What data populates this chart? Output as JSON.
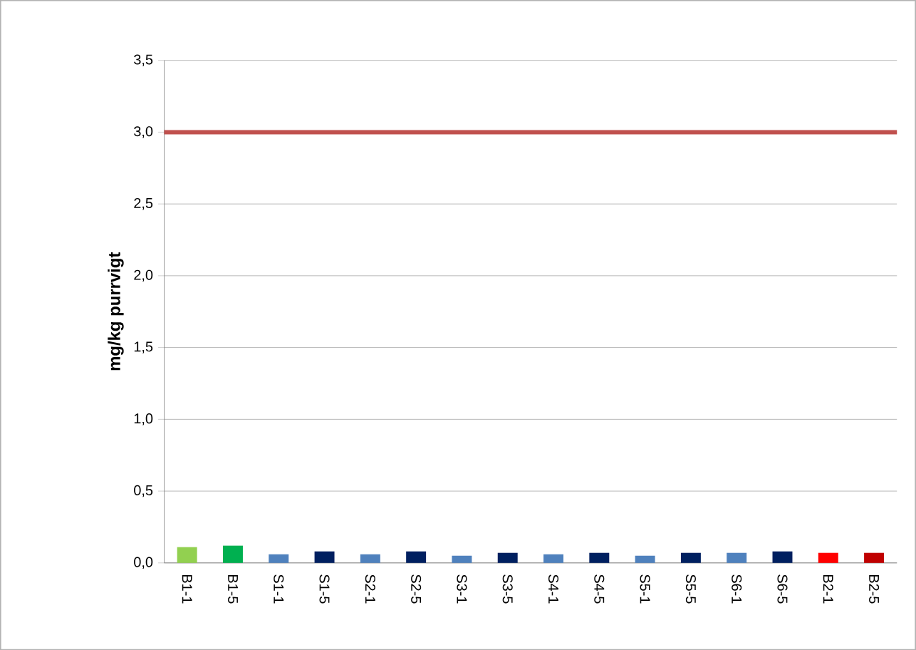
{
  "chart_data": {
    "type": "bar",
    "ylabel": "mg/kg purrvigt",
    "categories": [
      "B1-1",
      "B1-5",
      "S1-1",
      "S1-5",
      "S2-1",
      "S2-5",
      "S3-1",
      "S3-5",
      "S4-1",
      "S4-5",
      "S5-1",
      "S5-5",
      "S6-1",
      "S6-5",
      "B2-1",
      "B2-5"
    ],
    "values": [
      0.11,
      0.12,
      0.06,
      0.08,
      0.06,
      0.08,
      0.05,
      0.07,
      0.06,
      0.07,
      0.05,
      0.07,
      0.07,
      0.08,
      0.07,
      0.07
    ],
    "colors": [
      "#92d050",
      "#00b050",
      "#4f81bd",
      "#002060",
      "#4f81bd",
      "#002060",
      "#4f81bd",
      "#002060",
      "#4f81bd",
      "#002060",
      "#4f81bd",
      "#002060",
      "#4f81bd",
      "#002060",
      "#ff0000",
      "#c00000"
    ],
    "ylim": [
      0,
      3.5
    ],
    "yticks": [
      {
        "value": 0,
        "label": "0,0"
      },
      {
        "value": 0.5,
        "label": "0,5"
      },
      {
        "value": 1,
        "label": "1,0"
      },
      {
        "value": 1.5,
        "label": "1,5"
      },
      {
        "value": 2,
        "label": "2,0"
      },
      {
        "value": 2.5,
        "label": "2,5"
      },
      {
        "value": 3,
        "label": "3,0"
      },
      {
        "value": 3.5,
        "label": "3,5"
      }
    ],
    "grid": "y",
    "ref_lines": [
      {
        "axis": "y",
        "value": 3,
        "color": "#c0504d"
      }
    ]
  }
}
